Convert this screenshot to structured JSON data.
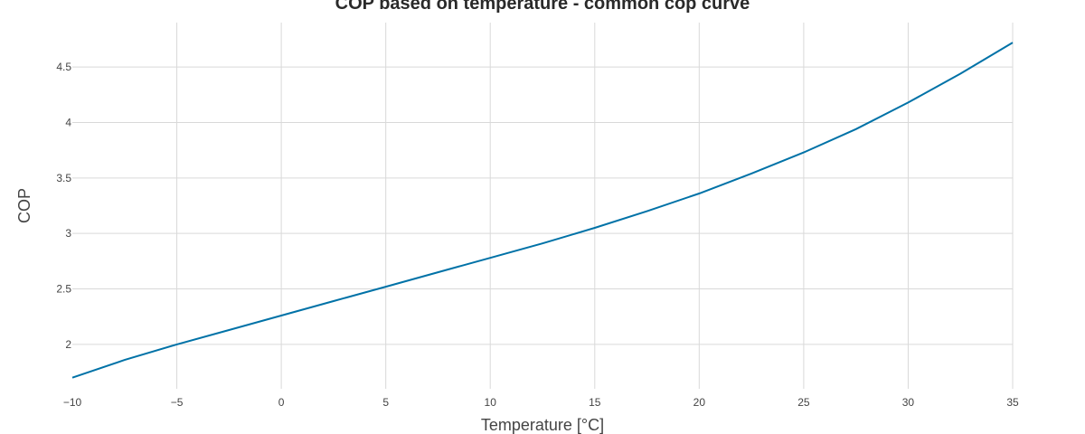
{
  "chart_data": {
    "type": "line",
    "title": "COP based on temperature - common cop curve",
    "xlabel": "Temperature [°C]",
    "ylabel": "COP",
    "xlim": [
      -10,
      35
    ],
    "ylim": [
      1.6,
      4.9
    ],
    "xticks": [
      -10,
      -5,
      0,
      5,
      10,
      15,
      20,
      25,
      30,
      35
    ],
    "xtick_labels": [
      "−10",
      "−5",
      "0",
      "5",
      "10",
      "15",
      "20",
      "25",
      "30",
      "35"
    ],
    "yticks": [
      2,
      2.5,
      3,
      3.5,
      4,
      4.5
    ],
    "ytick_labels": [
      "2",
      "2.5",
      "3",
      "3.5",
      "4",
      "4.5"
    ],
    "grid": true,
    "series": [
      {
        "color": "#0072a7",
        "x": [
          -10,
          -7.5,
          -5,
          -2.5,
          0,
          2.5,
          5,
          7.5,
          10,
          12.5,
          15,
          17.5,
          20,
          22.5,
          25,
          27.5,
          30,
          32.5,
          35
        ],
        "y": [
          1.7,
          1.86,
          2.0,
          2.13,
          2.26,
          2.39,
          2.52,
          2.65,
          2.78,
          2.91,
          3.05,
          3.2,
          3.36,
          3.54,
          3.73,
          3.94,
          4.18,
          4.44,
          4.72
        ]
      }
    ]
  }
}
